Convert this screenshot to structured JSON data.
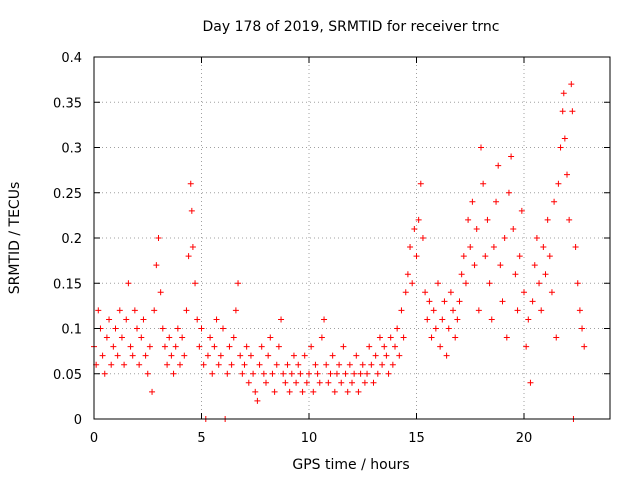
{
  "chart_data": {
    "type": "scatter",
    "title": "Day 178 of 2019, SRMTID for receiver trnc",
    "xlabel": "GPS time / hours",
    "ylabel": "SRMTID / TECUs",
    "xlim": [
      0,
      24
    ],
    "ylim": [
      0,
      0.4
    ],
    "xticks": [
      0,
      5,
      10,
      15,
      20
    ],
    "xtick_labels": [
      "0",
      "5",
      "10",
      "15",
      "20"
    ],
    "yticks": [
      0,
      0.05,
      0.1,
      0.15,
      0.2,
      0.25,
      0.3,
      0.35,
      0.4
    ],
    "ytick_labels": [
      "0",
      "0.05",
      "0.1",
      "0.15",
      "0.2",
      "0.25",
      "0.3",
      "0.35",
      "0.4"
    ],
    "grid": true,
    "marker": "+",
    "color": "#ff0000",
    "series": [
      {
        "name": "SRMTID",
        "points": [
          [
            0.0,
            0.08
          ],
          [
            0.1,
            0.06
          ],
          [
            0.2,
            0.12
          ],
          [
            0.3,
            0.1
          ],
          [
            0.4,
            0.07
          ],
          [
            0.5,
            0.05
          ],
          [
            0.6,
            0.09
          ],
          [
            0.7,
            0.11
          ],
          [
            0.8,
            0.06
          ],
          [
            0.9,
            0.08
          ],
          [
            1.0,
            0.1
          ],
          [
            1.1,
            0.07
          ],
          [
            1.2,
            0.12
          ],
          [
            1.3,
            0.09
          ],
          [
            1.4,
            0.06
          ],
          [
            1.5,
            0.11
          ],
          [
            1.6,
            0.15
          ],
          [
            1.7,
            0.08
          ],
          [
            1.8,
            0.07
          ],
          [
            1.9,
            0.12
          ],
          [
            2.0,
            0.1
          ],
          [
            2.1,
            0.06
          ],
          [
            2.2,
            0.09
          ],
          [
            2.3,
            0.11
          ],
          [
            2.4,
            0.07
          ],
          [
            2.5,
            0.05
          ],
          [
            2.6,
            0.08
          ],
          [
            2.7,
            0.03
          ],
          [
            2.8,
            0.12
          ],
          [
            2.9,
            0.17
          ],
          [
            3.0,
            0.2
          ],
          [
            3.1,
            0.14
          ],
          [
            3.2,
            0.1
          ],
          [
            3.3,
            0.08
          ],
          [
            3.4,
            0.06
          ],
          [
            3.5,
            0.09
          ],
          [
            3.6,
            0.07
          ],
          [
            3.7,
            0.05
          ],
          [
            3.8,
            0.08
          ],
          [
            3.9,
            0.1
          ],
          [
            4.0,
            0.06
          ],
          [
            4.1,
            0.09
          ],
          [
            4.2,
            0.07
          ],
          [
            4.3,
            0.12
          ],
          [
            4.4,
            0.18
          ],
          [
            4.5,
            0.26
          ],
          [
            4.55,
            0.23
          ],
          [
            4.6,
            0.19
          ],
          [
            4.7,
            0.15
          ],
          [
            4.8,
            0.11
          ],
          [
            4.9,
            0.08
          ],
          [
            5.0,
            0.1
          ],
          [
            5.1,
            0.06
          ],
          [
            5.2,
            0.0
          ],
          [
            5.3,
            0.07
          ],
          [
            5.4,
            0.09
          ],
          [
            5.5,
            0.05
          ],
          [
            5.6,
            0.08
          ],
          [
            5.7,
            0.11
          ],
          [
            5.8,
            0.06
          ],
          [
            5.9,
            0.07
          ],
          [
            6.0,
            0.1
          ],
          [
            6.1,
            0.0
          ],
          [
            6.2,
            0.05
          ],
          [
            6.3,
            0.08
          ],
          [
            6.4,
            0.06
          ],
          [
            6.5,
            0.09
          ],
          [
            6.6,
            0.12
          ],
          [
            6.7,
            0.15
          ],
          [
            6.8,
            0.07
          ],
          [
            6.9,
            0.05
          ],
          [
            7.0,
            0.06
          ],
          [
            7.1,
            0.08
          ],
          [
            7.2,
            0.04
          ],
          [
            7.3,
            0.07
          ],
          [
            7.4,
            0.05
          ],
          [
            7.5,
            0.03
          ],
          [
            7.6,
            0.02
          ],
          [
            7.7,
            0.06
          ],
          [
            7.8,
            0.08
          ],
          [
            7.9,
            0.05
          ],
          [
            8.0,
            0.04
          ],
          [
            8.1,
            0.07
          ],
          [
            8.2,
            0.09
          ],
          [
            8.3,
            0.05
          ],
          [
            8.4,
            0.03
          ],
          [
            8.5,
            0.06
          ],
          [
            8.6,
            0.08
          ],
          [
            8.7,
            0.11
          ],
          [
            8.8,
            0.05
          ],
          [
            8.9,
            0.04
          ],
          [
            9.0,
            0.06
          ],
          [
            9.1,
            0.03
          ],
          [
            9.2,
            0.05
          ],
          [
            9.3,
            0.07
          ],
          [
            9.4,
            0.04
          ],
          [
            9.5,
            0.06
          ],
          [
            9.6,
            0.05
          ],
          [
            9.7,
            0.03
          ],
          [
            9.8,
            0.07
          ],
          [
            9.9,
            0.04
          ],
          [
            10.0,
            0.05
          ],
          [
            10.1,
            0.08
          ],
          [
            10.2,
            0.03
          ],
          [
            10.3,
            0.06
          ],
          [
            10.4,
            0.05
          ],
          [
            10.5,
            0.04
          ],
          [
            10.6,
            0.09
          ],
          [
            10.7,
            0.11
          ],
          [
            10.8,
            0.06
          ],
          [
            10.9,
            0.04
          ],
          [
            11.0,
            0.05
          ],
          [
            11.1,
            0.07
          ],
          [
            11.2,
            0.03
          ],
          [
            11.3,
            0.05
          ],
          [
            11.4,
            0.06
          ],
          [
            11.5,
            0.04
          ],
          [
            11.6,
            0.08
          ],
          [
            11.7,
            0.05
          ],
          [
            11.8,
            0.03
          ],
          [
            11.9,
            0.06
          ],
          [
            12.0,
            0.04
          ],
          [
            12.1,
            0.05
          ],
          [
            12.2,
            0.07
          ],
          [
            12.3,
            0.03
          ],
          [
            12.4,
            0.05
          ],
          [
            12.5,
            0.06
          ],
          [
            12.6,
            0.04
          ],
          [
            12.7,
            0.05
          ],
          [
            12.8,
            0.08
          ],
          [
            12.9,
            0.06
          ],
          [
            13.0,
            0.04
          ],
          [
            13.1,
            0.07
          ],
          [
            13.2,
            0.05
          ],
          [
            13.3,
            0.09
          ],
          [
            13.4,
            0.06
          ],
          [
            13.5,
            0.08
          ],
          [
            13.6,
            0.07
          ],
          [
            13.7,
            0.05
          ],
          [
            13.8,
            0.09
          ],
          [
            13.9,
            0.06
          ],
          [
            14.0,
            0.08
          ],
          [
            14.1,
            0.1
          ],
          [
            14.2,
            0.07
          ],
          [
            14.3,
            0.12
          ],
          [
            14.4,
            0.09
          ],
          [
            14.5,
            0.14
          ],
          [
            14.6,
            0.16
          ],
          [
            14.7,
            0.19
          ],
          [
            14.8,
            0.15
          ],
          [
            14.9,
            0.21
          ],
          [
            15.0,
            0.18
          ],
          [
            15.1,
            0.22
          ],
          [
            15.2,
            0.26
          ],
          [
            15.3,
            0.2
          ],
          [
            15.4,
            0.14
          ],
          [
            15.5,
            0.11
          ],
          [
            15.6,
            0.13
          ],
          [
            15.7,
            0.09
          ],
          [
            15.8,
            0.12
          ],
          [
            15.9,
            0.1
          ],
          [
            16.0,
            0.15
          ],
          [
            16.1,
            0.08
          ],
          [
            16.2,
            0.11
          ],
          [
            16.3,
            0.13
          ],
          [
            16.4,
            0.07
          ],
          [
            16.5,
            0.1
          ],
          [
            16.6,
            0.14
          ],
          [
            16.7,
            0.12
          ],
          [
            16.8,
            0.09
          ],
          [
            16.9,
            0.11
          ],
          [
            17.0,
            0.13
          ],
          [
            17.1,
            0.16
          ],
          [
            17.2,
            0.18
          ],
          [
            17.3,
            0.15
          ],
          [
            17.4,
            0.22
          ],
          [
            17.5,
            0.19
          ],
          [
            17.6,
            0.24
          ],
          [
            17.7,
            0.17
          ],
          [
            17.8,
            0.21
          ],
          [
            17.9,
            0.12
          ],
          [
            18.0,
            0.3
          ],
          [
            18.1,
            0.26
          ],
          [
            18.2,
            0.18
          ],
          [
            18.3,
            0.22
          ],
          [
            18.4,
            0.15
          ],
          [
            18.5,
            0.11
          ],
          [
            18.6,
            0.19
          ],
          [
            18.7,
            0.24
          ],
          [
            18.8,
            0.28
          ],
          [
            18.9,
            0.17
          ],
          [
            19.0,
            0.13
          ],
          [
            19.1,
            0.2
          ],
          [
            19.2,
            0.09
          ],
          [
            19.3,
            0.25
          ],
          [
            19.4,
            0.29
          ],
          [
            19.5,
            0.21
          ],
          [
            19.6,
            0.16
          ],
          [
            19.7,
            0.12
          ],
          [
            19.8,
            0.18
          ],
          [
            19.9,
            0.23
          ],
          [
            20.0,
            0.14
          ],
          [
            20.1,
            0.08
          ],
          [
            20.2,
            0.11
          ],
          [
            20.3,
            0.04
          ],
          [
            20.4,
            0.13
          ],
          [
            20.5,
            0.17
          ],
          [
            20.6,
            0.2
          ],
          [
            20.7,
            0.15
          ],
          [
            20.8,
            0.12
          ],
          [
            20.9,
            0.19
          ],
          [
            21.0,
            0.16
          ],
          [
            21.1,
            0.22
          ],
          [
            21.2,
            0.18
          ],
          [
            21.3,
            0.14
          ],
          [
            21.4,
            0.24
          ],
          [
            21.5,
            0.09
          ],
          [
            21.6,
            0.26
          ],
          [
            21.7,
            0.3
          ],
          [
            21.8,
            0.34
          ],
          [
            21.85,
            0.36
          ],
          [
            21.9,
            0.31
          ],
          [
            22.0,
            0.27
          ],
          [
            22.1,
            0.22
          ],
          [
            22.2,
            0.37
          ],
          [
            22.25,
            0.34
          ],
          [
            22.3,
            0.0
          ],
          [
            22.4,
            0.19
          ],
          [
            22.5,
            0.15
          ],
          [
            22.6,
            0.12
          ],
          [
            22.7,
            0.1
          ],
          [
            22.8,
            0.08
          ]
        ]
      }
    ]
  }
}
